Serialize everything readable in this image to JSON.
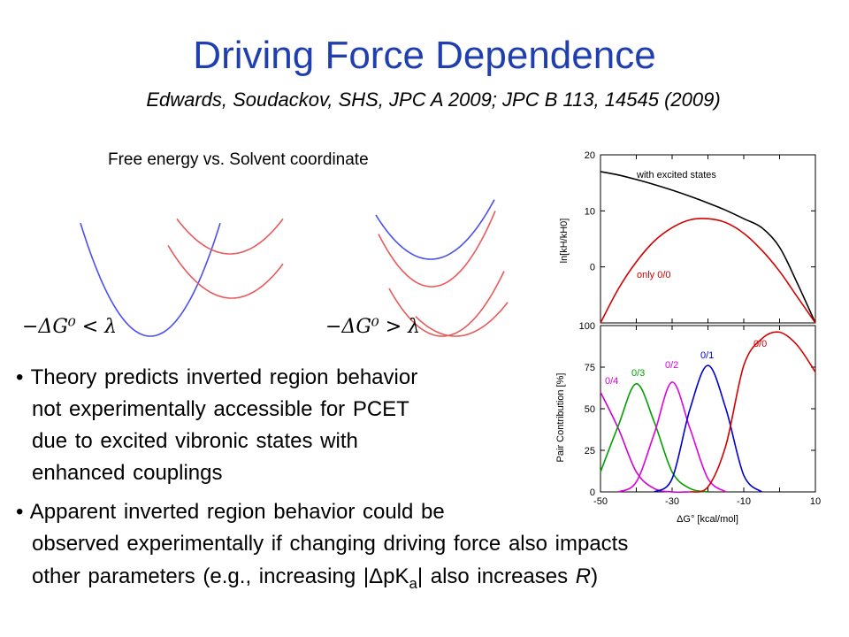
{
  "slide": {
    "title": "Driving Force Dependence",
    "subtitle": "Edwards, Soudackov, SHS, JPC A 2009; JPC B 113, 14545 (2009)",
    "curves_caption": "Free energy vs. Solvent coordinate",
    "left_condition": "−ΔG⁰ < λ",
    "right_condition": "−ΔG⁰ > λ",
    "bullets": [
      {
        "lines": [
          "• Theory predicts inverted region behavior",
          "not experimentally accessible for PCET",
          "due to excited vibronic states with",
          "enhanced couplings"
        ]
      },
      {
        "line1": "• Apparent inverted region behavior could be",
        "line2": "observed experimentally if changing driving force also impacts",
        "line3_pre": "other parameters (e.g., increasing |",
        "line3_glyph": "Δ",
        "line3_pk": "pK",
        "line3_sub": "a",
        "line3_post": "| also increases ",
        "line3_R": "R",
        "line3_end": ")"
      }
    ]
  },
  "colors": {
    "title": "#1f3fb0",
    "blue_curve": "#4a4ff0",
    "red_curve": "#e85a5a",
    "chart_red": "#d40000",
    "chart_green": "#00a000",
    "chart_magenta": "#e000e0",
    "chart_blue": "#0000d0"
  },
  "chart_data": [
    {
      "type": "line",
      "title": "",
      "xlabel": "",
      "ylabel": "ln[kH/kH0]",
      "xlim": [
        -50,
        10
      ],
      "ylim": [
        -10,
        20
      ],
      "yticks": [
        "20",
        "10",
        "0"
      ],
      "series": [
        {
          "name": "with excited states",
          "color": "#000000",
          "x": [
            -50,
            -45,
            -40,
            -35,
            -30,
            -25,
            -20,
            -15,
            -10,
            -5,
            0,
            5,
            10
          ],
          "y": [
            17.0,
            16.4,
            15.6,
            14.7,
            13.7,
            12.6,
            11.4,
            10.1,
            8.6,
            7.0,
            3.5,
            -3.0,
            -10.0
          ]
        },
        {
          "name": "only 0/0",
          "color": "#d40000",
          "x": [
            -50,
            -45,
            -40,
            -35,
            -30,
            -25,
            -20,
            -15,
            -10,
            -5,
            0,
            5,
            10
          ],
          "y": [
            -10.0,
            -3.9,
            0.9,
            4.6,
            7.0,
            8.4,
            8.6,
            7.9,
            6.0,
            3.0,
            -0.8,
            -5.4,
            -10.0
          ]
        }
      ]
    },
    {
      "type": "line",
      "title": "",
      "xlabel": "ΔG° [kcal/mol]",
      "ylabel": "Pair Contribution [%]",
      "xlim": [
        -50,
        10
      ],
      "ylim": [
        0,
        100
      ],
      "xticks": [
        "-50",
        "-30",
        "-10",
        "10"
      ],
      "yticks": [
        "100",
        "75",
        "50",
        "25",
        "0"
      ],
      "series": [
        {
          "name": "0/4",
          "color": "#d000d0",
          "x": [
            -50,
            -45,
            -40,
            -35,
            -30,
            -25
          ],
          "y": [
            60,
            38,
            12,
            2,
            0,
            0
          ]
        },
        {
          "name": "0/3",
          "color": "#00a000",
          "x": [
            -50,
            -45,
            -40,
            -35,
            -30,
            -25,
            -20
          ],
          "y": [
            12,
            40,
            65,
            42,
            12,
            2,
            0
          ]
        },
        {
          "name": "0/2",
          "color": "#e000e0",
          "x": [
            -45,
            -40,
            -35,
            -30,
            -25,
            -20,
            -15
          ],
          "y": [
            0,
            6,
            35,
            66,
            38,
            8,
            0
          ]
        },
        {
          "name": "0/1",
          "color": "#0000d0",
          "x": [
            -35,
            -30,
            -25,
            -20,
            -15,
            -10,
            -5
          ],
          "y": [
            0,
            8,
            50,
            76,
            50,
            10,
            0
          ]
        },
        {
          "name": "0/0",
          "color": "#d40000",
          "x": [
            -25,
            -20,
            -15,
            -10,
            -5,
            0,
            5,
            10
          ],
          "y": [
            0,
            3,
            28,
            76,
            92,
            96,
            88,
            72
          ]
        }
      ]
    }
  ]
}
